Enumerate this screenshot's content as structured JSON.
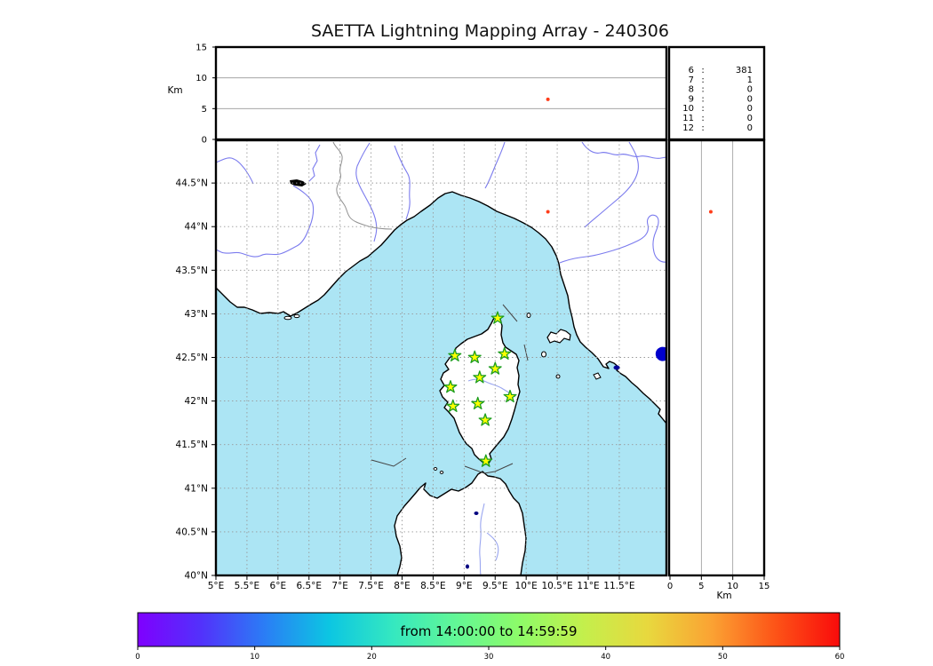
{
  "title": "SAETTA Lightning Mapping Array - 240306",
  "axes": {
    "alt_axis_label": "Km",
    "right_axis_label": "Km",
    "lon_labels": [
      "5°E",
      "5.5°E",
      "6°E",
      "6.5°E",
      "7°E",
      "7.5°E",
      "8°E",
      "8.5°E",
      "9°E",
      "9.5°E",
      "10°E",
      "10.5°E",
      "11°E",
      "11.5°E"
    ],
    "lat_labels": [
      "40°N",
      "40.5°N",
      "41°N",
      "41.5°N",
      "42°N",
      "42.5°N",
      "43°N",
      "43.5°N",
      "44°N",
      "44.5°N"
    ],
    "alt_labels": [
      "0",
      "5",
      "10",
      "15"
    ]
  },
  "legend": {
    "rows": [
      {
        "station": "6",
        "count": "381",
        "color": "#000000"
      },
      {
        "station": "7",
        "count": "1",
        "color": "#ff0000"
      },
      {
        "station": "8",
        "count": "0",
        "color": "#000000"
      },
      {
        "station": "9",
        "count": "0",
        "color": "#000000"
      },
      {
        "station": "10",
        "count": "0",
        "color": "#000000"
      },
      {
        "station": "11",
        "count": "0",
        "color": "#000000"
      },
      {
        "station": "12",
        "count": "0",
        "color": "#000000"
      }
    ]
  },
  "colorbar": {
    "label": "from 14:00:00 to 14:59:59",
    "tick_labels": [
      "0",
      "10",
      "20",
      "30",
      "40",
      "50",
      "60"
    ],
    "gradient": [
      "#7f00fe",
      "#5232fb",
      "#2a7ef5",
      "#0cc6e2",
      "#35e8c0",
      "#63f795",
      "#8efb68",
      "#c4ef4c",
      "#e8d83e",
      "#fba233",
      "#fd5317",
      "#f90b0b"
    ]
  },
  "colors": {
    "sea": "#ace5f4",
    "land": "#ffffff",
    "coast": "#000000",
    "river": "#7b7bee",
    "border": "#909090",
    "grid": "#999999",
    "star_fill": "#ffff00",
    "star_edge": "#1e9e1e",
    "lake": "#000080"
  },
  "chart_data": {
    "type": "scatter",
    "title": "SAETTA Lightning Mapping Array - 240306",
    "subtype": "lightning-mapping-array (map + altitude projections)",
    "map_lon_range": [
      5.0,
      12.26
    ],
    "map_lat_range": [
      40.0,
      44.99
    ],
    "altitude_range_km": [
      0,
      15
    ],
    "lon_ticks": [
      5,
      5.5,
      6,
      6.5,
      7,
      7.5,
      8,
      8.5,
      9,
      9.5,
      10,
      10.5,
      11,
      11.5
    ],
    "lat_ticks": [
      40,
      40.5,
      41,
      41.5,
      42,
      42.5,
      43,
      43.5,
      44,
      44.5
    ],
    "alt_ticks": [
      0,
      5,
      10,
      15
    ],
    "grid": true,
    "stations_lonlat": [
      [
        9.54,
        42.95
      ],
      [
        8.85,
        42.52
      ],
      [
        9.17,
        42.5
      ],
      [
        9.65,
        42.54
      ],
      [
        9.5,
        42.37
      ],
      [
        9.25,
        42.27
      ],
      [
        8.78,
        42.16
      ],
      [
        9.74,
        42.05
      ],
      [
        9.22,
        41.97
      ],
      [
        8.82,
        41.94
      ],
      [
        9.34,
        41.78
      ],
      [
        9.35,
        41.31
      ]
    ],
    "lightning_sources": [
      {
        "lon": 10.35,
        "lat": 44.17,
        "alt_km": 6.5,
        "color": "#ff3d1a",
        "radius": 2,
        "map_only": false
      },
      {
        "lon": 12.2,
        "lat": 42.54,
        "alt_km": 0.0,
        "color": "#0000cc",
        "radius": 8,
        "map_only": true
      }
    ],
    "station_count_histogram": [
      {
        "stations": "6",
        "count": 381
      },
      {
        "stations": "7",
        "count": 1
      },
      {
        "stations": "8",
        "count": 0
      },
      {
        "stations": "9",
        "count": 0
      },
      {
        "stations": "10",
        "count": 0
      },
      {
        "stations": "11",
        "count": 0
      },
      {
        "stations": "12",
        "count": 0
      }
    ],
    "time_window_label": "from 14:00:00 to 14:59:59",
    "colorbar_ticks": [
      0,
      10,
      20,
      30,
      40,
      50,
      60
    ]
  }
}
